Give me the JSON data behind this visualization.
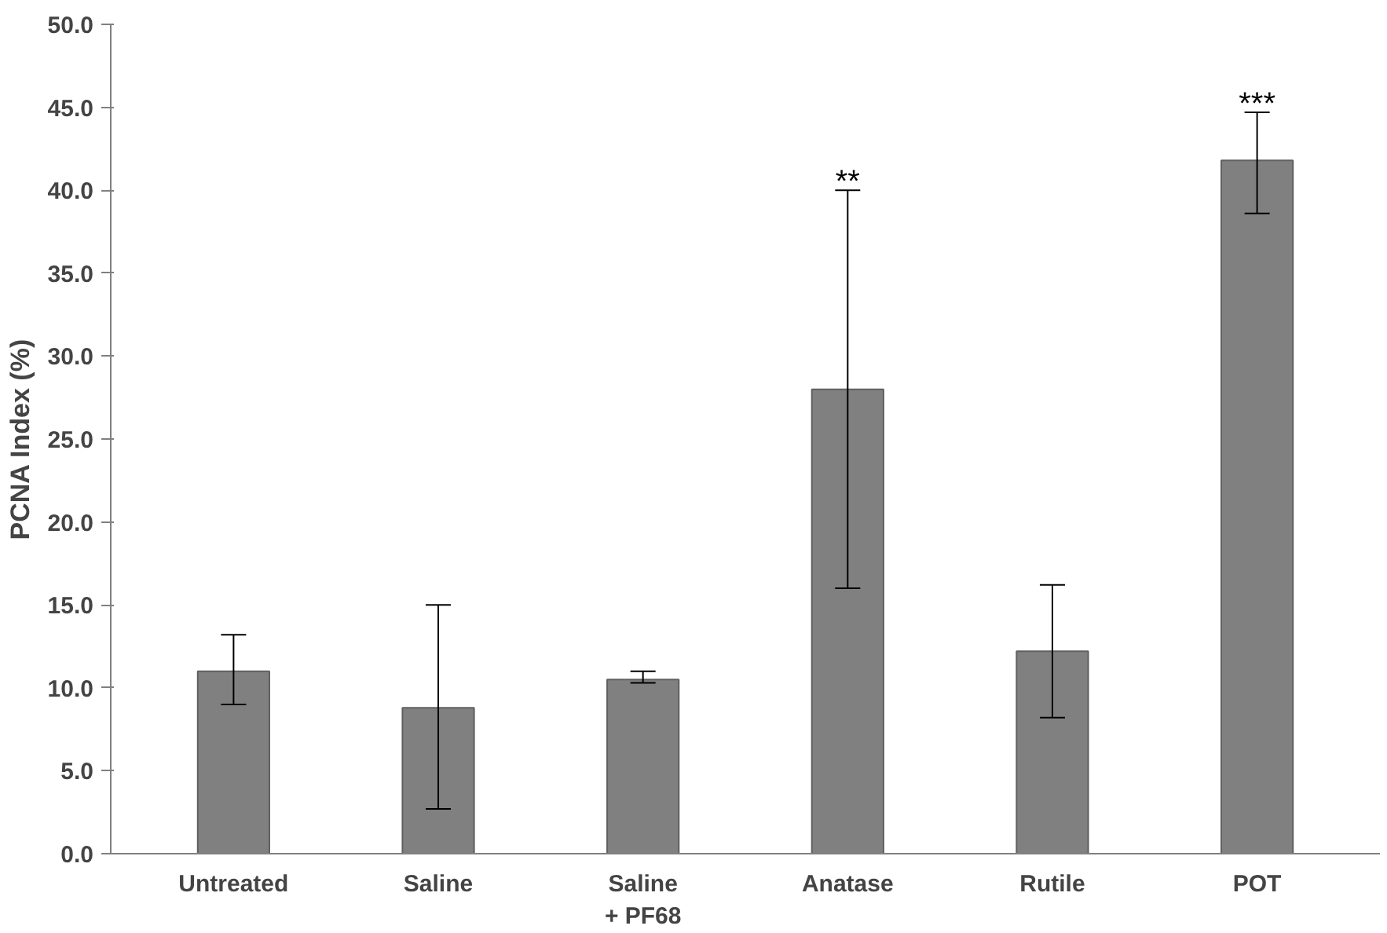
{
  "chart_data": {
    "type": "bar",
    "ylabel": "PCNA Index (%)",
    "categories": [
      "Untreated",
      "Saline",
      "Saline\n+ PF68",
      "Anatase",
      "Rutile",
      "POT"
    ],
    "values": [
      11.0,
      8.8,
      10.5,
      28.0,
      12.2,
      41.8
    ],
    "errors": [
      [
        9.0,
        13.2
      ],
      [
        2.7,
        15.0
      ],
      [
        10.3,
        11.0
      ],
      [
        16.0,
        40.0
      ],
      [
        8.2,
        16.2
      ],
      [
        38.6,
        44.7
      ]
    ],
    "color": "#808080",
    "ylim": [
      0,
      50
    ],
    "yticks": [
      {
        "value": 0,
        "label": "0.0"
      },
      {
        "value": 5,
        "label": "5.0"
      },
      {
        "value": 10,
        "label": "10.0"
      },
      {
        "value": 15,
        "label": "15.0"
      },
      {
        "value": 20,
        "label": "20.0"
      },
      {
        "value": 25,
        "label": "25.0"
      },
      {
        "value": 30,
        "label": "30.0"
      },
      {
        "value": 35,
        "label": "35.0"
      },
      {
        "value": 40,
        "label": "40.0"
      },
      {
        "value": 45,
        "label": "45.0"
      },
      {
        "value": 50,
        "label": "50.0"
      }
    ],
    "annotations": [
      {
        "text": "**",
        "x": "Anatase",
        "y": 40.0
      },
      {
        "text": "***",
        "x": "POT",
        "y": 44.7
      }
    ],
    "grid": false
  }
}
